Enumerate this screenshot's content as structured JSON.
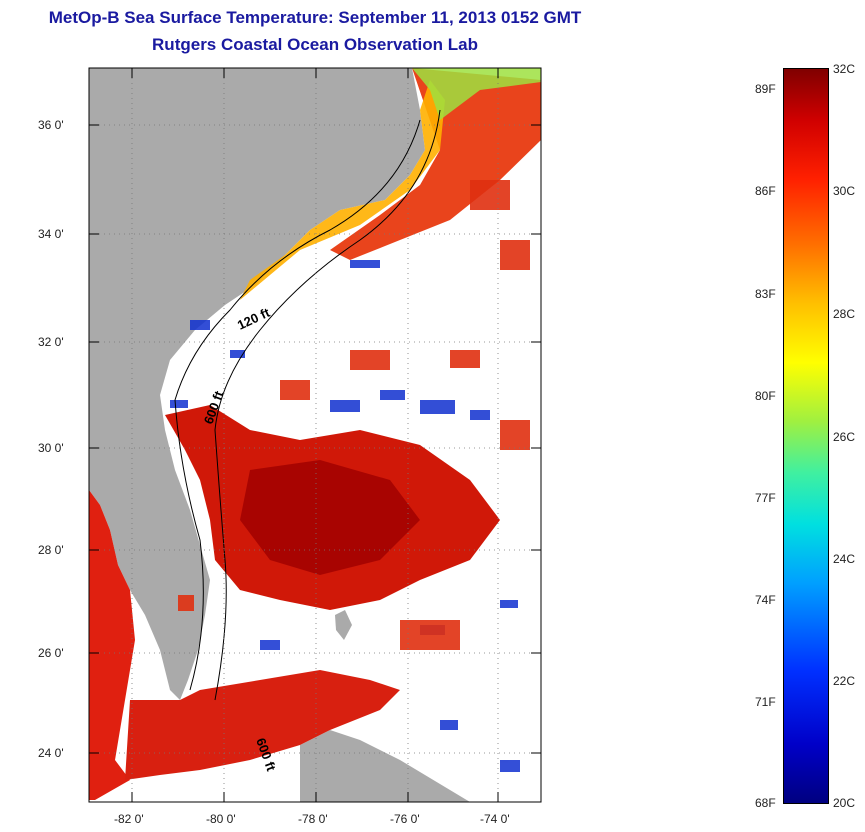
{
  "title": {
    "line1": "MetOp-B Sea Surface Temperature:  September 11, 2013 0152 GMT",
    "line2": "Rutgers Coastal Ocean Observation Lab"
  },
  "map": {
    "lat_ticks": [
      "36 0'",
      "34 0'",
      "32 0'",
      "30 0'",
      "28 0'",
      "26 0'",
      "24 0'"
    ],
    "lon_ticks": [
      "-82 0'",
      "-80 0'",
      "-78 0'",
      "-76 0'",
      "-74 0'"
    ],
    "isobath_labels": [
      "120 ft",
      "600 ft",
      "600 ft"
    ]
  },
  "colorbar": {
    "fahrenheit_labels": [
      "89F",
      "86F",
      "83F",
      "80F",
      "77F",
      "74F",
      "71F",
      "68F"
    ],
    "celsius_labels": [
      "32C",
      "30C",
      "28C",
      "26C",
      "24C",
      "22C",
      "20C"
    ]
  },
  "colors": {
    "title": "#1a1aa0",
    "land": "#aaaaaa",
    "no_data": "#ffffff"
  }
}
